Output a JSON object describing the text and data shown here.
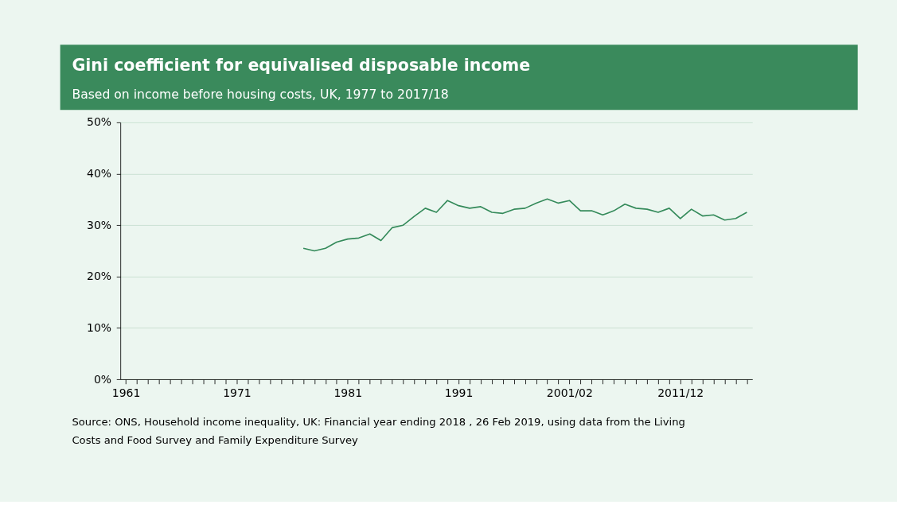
{
  "chart_data": {
    "type": "line",
    "title": "Gini coefficient for equivalised disposable income",
    "subtitle": "Based on income before housing costs, UK, 1977 to 2017/18",
    "categories": [
      "1961",
      null,
      null,
      null,
      null,
      null,
      null,
      null,
      null,
      null,
      "1971",
      null,
      null,
      null,
      null,
      null,
      null,
      null,
      null,
      null,
      "1981",
      null,
      null,
      null,
      null,
      null,
      null,
      null,
      null,
      null,
      "1991",
      null,
      null,
      null,
      null,
      null,
      null,
      null,
      null,
      null,
      "2001/02",
      null,
      null,
      null,
      null,
      null,
      null,
      null,
      null,
      null,
      "2011/12",
      null,
      null,
      null,
      null,
      null,
      null
    ],
    "series": [
      {
        "color": "#348a5a",
        "values": [
          null,
          null,
          null,
          null,
          null,
          null,
          null,
          null,
          null,
          null,
          null,
          null,
          null,
          null,
          null,
          null,
          25.5,
          25.0,
          25.5,
          26.7,
          27.3,
          27.5,
          28.3,
          27.0,
          29.5,
          30.0,
          31.7,
          33.3,
          32.5,
          34.8,
          33.8,
          33.3,
          33.6,
          32.5,
          32.3,
          33.1,
          33.3,
          34.3,
          35.1,
          34.3,
          34.8,
          32.8,
          32.8,
          32.0,
          32.8,
          34.1,
          33.3,
          33.1,
          32.5,
          33.3,
          31.3,
          33.1,
          31.8,
          32.0,
          31.0,
          31.3,
          32.5
        ]
      }
    ],
    "ylim": [
      0,
      50
    ],
    "yticks": [
      {
        "value": 0,
        "label": "0%"
      },
      {
        "value": 10,
        "label": "10%"
      },
      {
        "value": 20,
        "label": "20%"
      },
      {
        "value": 30,
        "label": "30%"
      },
      {
        "value": 40,
        "label": "40%"
      },
      {
        "value": 50,
        "label": "50%"
      }
    ],
    "grid": "y",
    "annotations": [
      "Source: ONS, Household income inequality, UK: Financial year ending 2018 , 26 Feb 2019, using data from the Living Costs and Food Survey and Family Expenditure Survey"
    ]
  }
}
